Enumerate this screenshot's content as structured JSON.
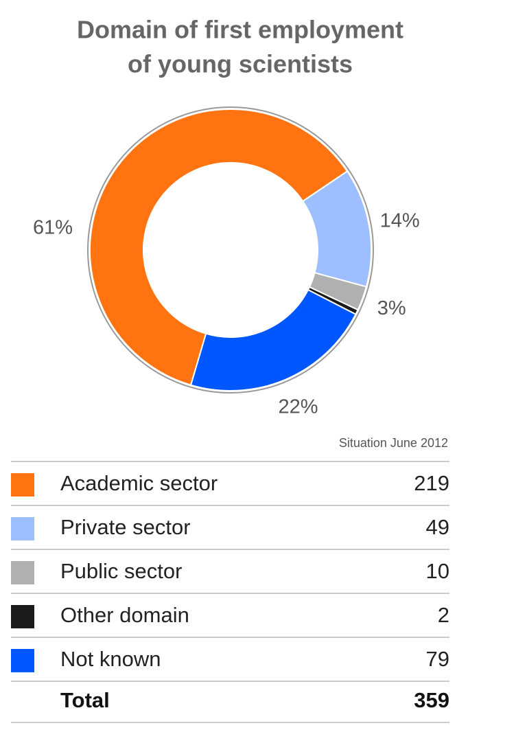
{
  "chart_data": {
    "type": "donut",
    "title": [
      "Domain of first employment",
      "of young scientists"
    ],
    "categories": [
      "Academic sector",
      "Private sector",
      "Public sector",
      "Other domain",
      "Not known"
    ],
    "values": [
      219,
      49,
      10,
      2,
      79
    ],
    "value_labels": [
      "61%",
      "14%",
      "3%",
      null,
      "22%"
    ],
    "colors": [
      "#ff7411",
      "#9dbfff",
      "#b0b0b0",
      "#1a1a1a",
      "#0057ff"
    ],
    "note": "Situation June 2012",
    "total_label": "Total",
    "total": 359
  }
}
